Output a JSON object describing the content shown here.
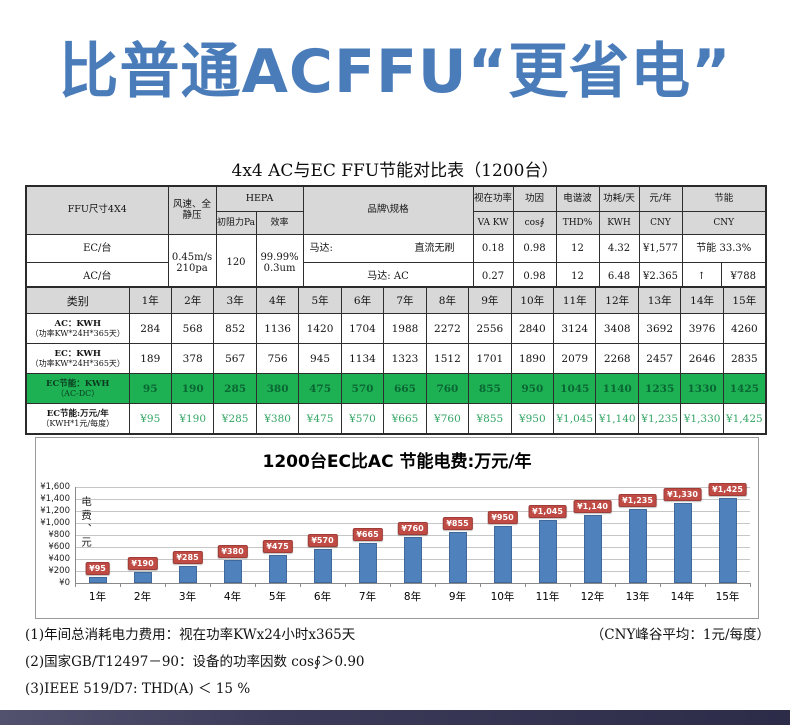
{
  "banner": {
    "title": "比普通ACFFU“更省电”"
  },
  "spec_table": {
    "title": "4x4 AC与EC FFU节能对比表（1200台）",
    "header": {
      "ffu_size": "FFU尺寸4X4",
      "wind": "风速、全静压",
      "hepa": "HEPA",
      "resistance": "初阻力Pa",
      "efficiency": "效率",
      "brand": "品牌\\规格",
      "apparent_power": "视在功率",
      "apparent_power_unit": "VA KW",
      "power_factor": "功因",
      "power_factor_unit": "cos∮",
      "harmonic": "电谐波",
      "harmonic_unit": "THD%",
      "consumption": "功耗/天",
      "consumption_unit": "KWH",
      "cost": "元/年",
      "cost_unit": "CNY",
      "saving": "节能",
      "saving_unit": "CNY"
    },
    "ec_row": {
      "label": "EC/台",
      "wind_line1": "0.45m/s",
      "wind_line2": "210pa",
      "resistance": "120",
      "efficiency_line1": "99.99%",
      "efficiency_line2": "0.3um",
      "motor_label": "马达:",
      "motor_value": "直流无刷",
      "va": "0.18",
      "cos": "0.98",
      "thd": "12",
      "kwh": "4.32",
      "cny": "¥1,577",
      "saving": "节能 33.3%"
    },
    "ac_row": {
      "label": "AC/台",
      "motor": "马达: AC",
      "va": "0.27",
      "cos": "0.98",
      "thd": "12",
      "kwh": "6.48",
      "cny": "¥2.365",
      "arrow": "↑",
      "saving": "¥788"
    },
    "category_label": "类别",
    "years": [
      "1年",
      "2年",
      "3年",
      "4年",
      "5年",
      "6年",
      "7年",
      "8年",
      "9年",
      "10年",
      "11年",
      "12年",
      "13年",
      "14年",
      "15年"
    ],
    "year_rows": [
      {
        "label": "AC：KWH",
        "sublabel": "（功率KW*24H*365天）",
        "style": "plain",
        "values": [
          "284",
          "568",
          "852",
          "1136",
          "1420",
          "1704",
          "1988",
          "2272",
          "2556",
          "2840",
          "3124",
          "3408",
          "3692",
          "3976",
          "4260"
        ]
      },
      {
        "label": "EC：KWH",
        "sublabel": "（功率KW*24H*365天）",
        "style": "plain",
        "values": [
          "189",
          "378",
          "567",
          "756",
          "945",
          "1134",
          "1323",
          "1512",
          "1701",
          "1890",
          "2079",
          "2268",
          "2457",
          "2646",
          "2835"
        ]
      },
      {
        "label": "EC节能：KWH",
        "sublabel": "（AC-DC）",
        "style": "green",
        "values": [
          "95",
          "190",
          "285",
          "380",
          "475",
          "570",
          "665",
          "760",
          "855",
          "950",
          "1045",
          "1140",
          "1235",
          "1330",
          "1425"
        ]
      },
      {
        "label": "EC节能:万元/年",
        "sublabel": "（KWH*1元/每度）",
        "style": "money",
        "values": [
          "¥95",
          "¥190",
          "¥285",
          "¥380",
          "¥475",
          "¥570",
          "¥665",
          "¥760",
          "¥855",
          "¥950",
          "¥1,045",
          "¥1,140",
          "¥1,235",
          "¥1,330",
          "¥1,425"
        ]
      }
    ]
  },
  "chart_data": {
    "type": "bar",
    "title": "1200台EC比AC 节能电费:万元/年",
    "ylabel": "电费、元",
    "xlabel": "",
    "categories": [
      "1年",
      "2年",
      "3年",
      "4年",
      "5年",
      "6年",
      "7年",
      "8年",
      "9年",
      "10年",
      "11年",
      "12年",
      "13年",
      "14年",
      "15年"
    ],
    "values": [
      95,
      190,
      285,
      380,
      475,
      570,
      665,
      760,
      855,
      950,
      1045,
      1140,
      1235,
      1330,
      1425
    ],
    "bar_labels": [
      "¥95",
      "¥190",
      "¥285",
      "¥380",
      "¥475",
      "¥570",
      "¥665",
      "¥760",
      "¥855",
      "¥950",
      "¥1,045",
      "¥1,140",
      "¥1,235",
      "¥1,330",
      "¥1,425"
    ],
    "ytick_labels": [
      "¥0",
      "¥200",
      "¥400",
      "¥600",
      "¥800",
      "¥1,000",
      "¥1,200",
      "¥1,400",
      "¥1,600"
    ],
    "ylim": [
      0,
      1600
    ],
    "grid": true,
    "legend_position": "none",
    "bar_color": "#4f81bd",
    "label_bg": "#bf4b44"
  },
  "notes": {
    "note1": "(1)年间总消耗电力费用：视在功率KWx24小时x365天",
    "note1_right": "（CNY峰谷平均：1元/每度）",
    "note2": "(2)国家GB/T12497－90：设备的功率因数 cos∮＞0.90",
    "note3": "(3)IEEE 519/D7: THD(A) ＜ 15 %"
  },
  "colors": {
    "banner_blue": "#4a7cba",
    "green_row_bg": "#1db154",
    "green_text": "#33a564",
    "red_text": "#e03024",
    "bar_blue": "#4f81bd",
    "bar_label_red": "#bf4b44"
  }
}
